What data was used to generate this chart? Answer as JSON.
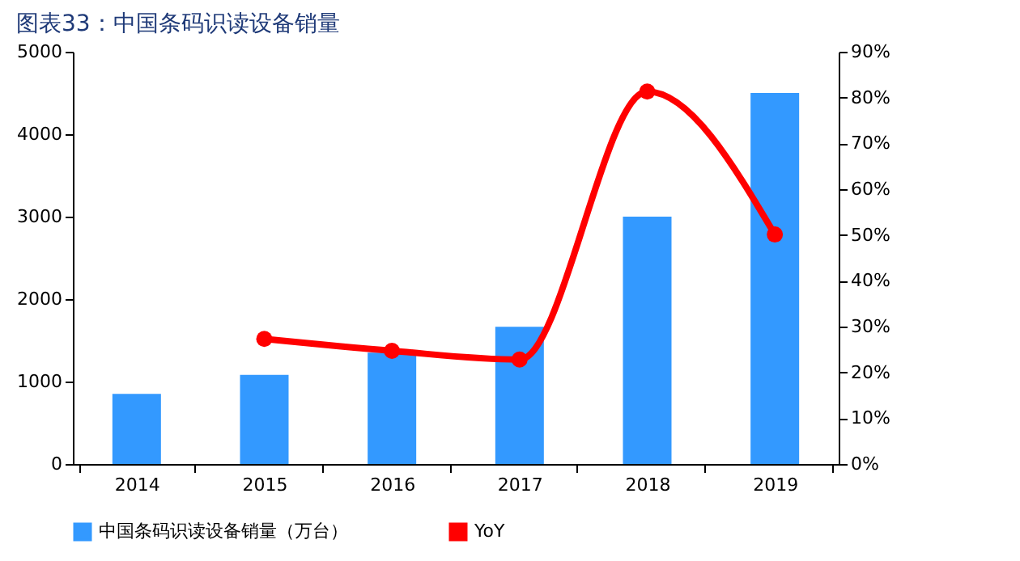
{
  "chart_data": {
    "type": "bar",
    "title": "图表33：中国条码识读设备销量",
    "categories": [
      "2014",
      "2015",
      "2016",
      "2017",
      "2018",
      "2019"
    ],
    "series": [
      {
        "name": "中国条码识读设备销量（万台）",
        "color": "#3399ff",
        "values": [
          850,
          1080,
          1350,
          1665,
          3000,
          4500
        ]
      },
      {
        "name": "YoY",
        "type": "line",
        "axis": "y2",
        "color": "#ff0000",
        "marker": "circle",
        "values": [
          null,
          27.3,
          24.7,
          22.8,
          81.3,
          50.1
        ]
      }
    ],
    "ylim": [
      0,
      5000
    ],
    "yticks": [
      0,
      1000,
      2000,
      3000,
      4000,
      5000
    ],
    "y2lim": [
      0,
      90
    ],
    "y2ticks": [
      {
        "value": 0,
        "label": "0%"
      },
      {
        "value": 10,
        "label": "10%"
      },
      {
        "value": 20,
        "label": "20%"
      },
      {
        "value": 30,
        "label": "30%"
      },
      {
        "value": 40,
        "label": "40%"
      },
      {
        "value": 50,
        "label": "50%"
      },
      {
        "value": 60,
        "label": "60%"
      },
      {
        "value": 70,
        "label": "70%"
      },
      {
        "value": 80,
        "label": "80%"
      },
      {
        "value": 90,
        "label": "90%"
      }
    ],
    "grid": false,
    "legend": "bottom"
  }
}
